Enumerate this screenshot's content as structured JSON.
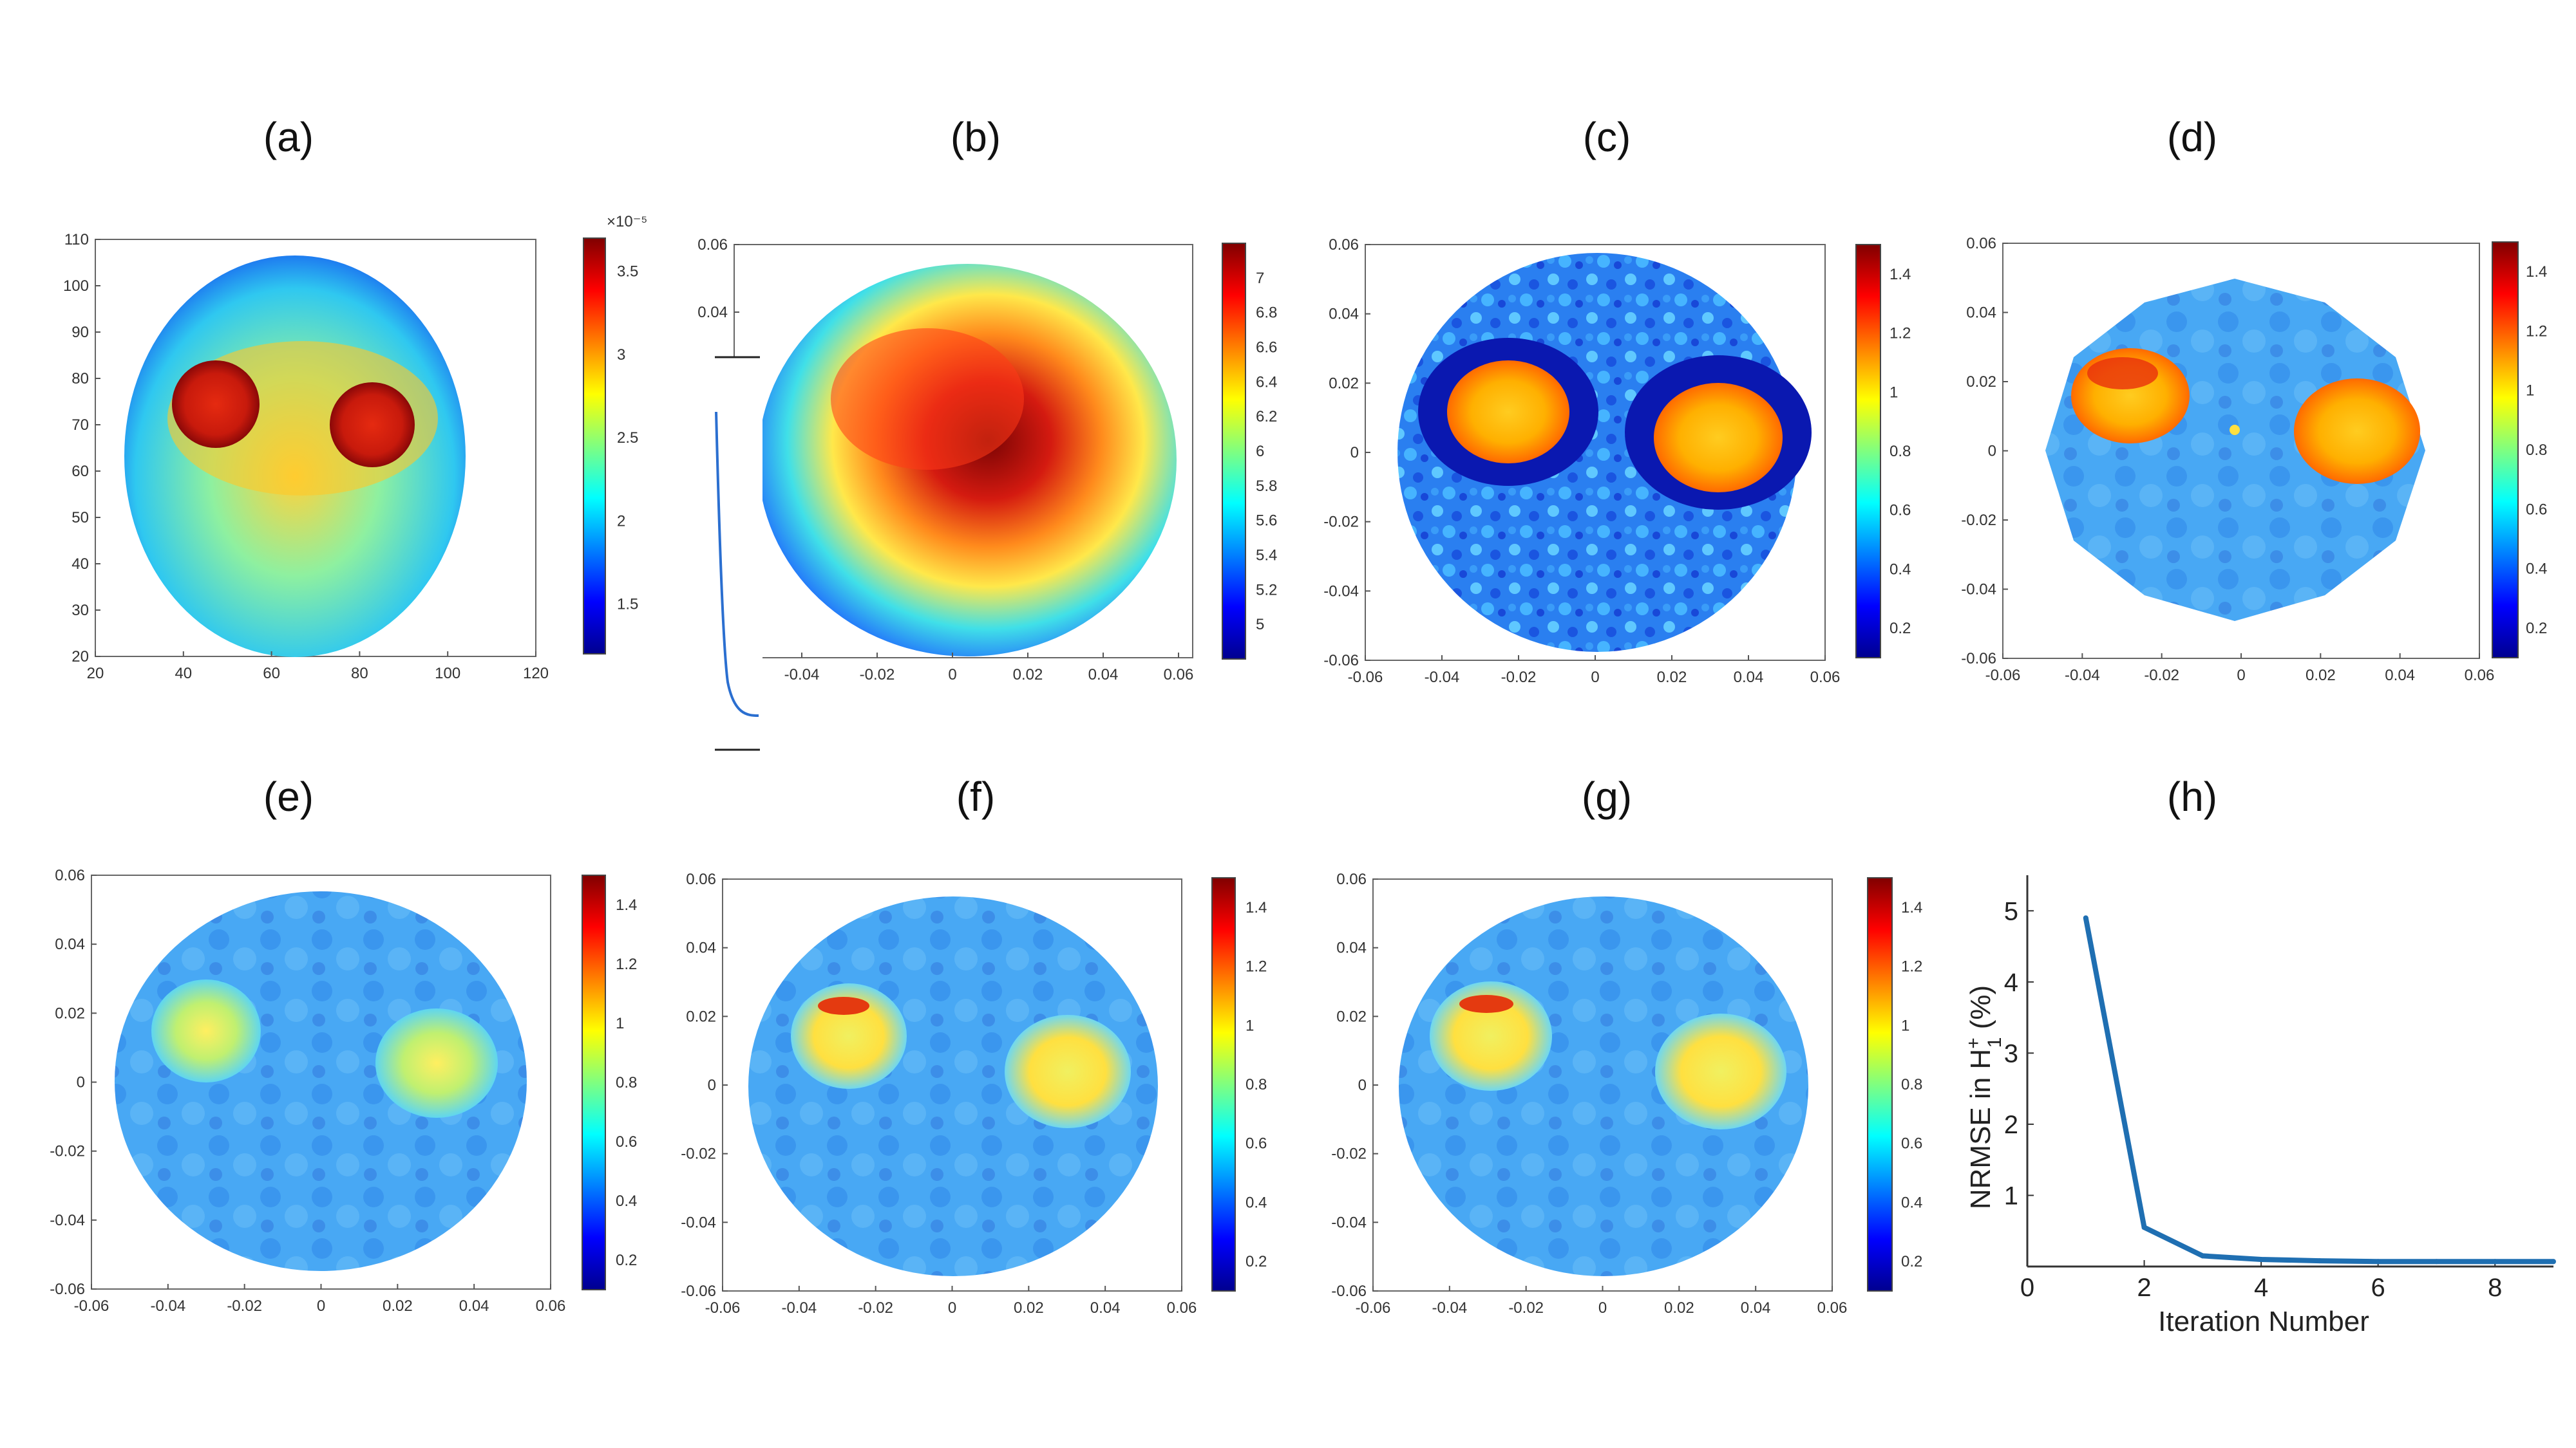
{
  "colors": {
    "axis": "#555555",
    "grid": "#e3e3e3",
    "line": "#1f6fb2"
  },
  "panels": [
    {
      "id": "a",
      "label": "(a)",
      "xticks": [
        "20",
        "40",
        "60",
        "80",
        "100",
        "120"
      ],
      "yticks": [
        "20",
        "30",
        "40",
        "50",
        "60",
        "70",
        "80",
        "90",
        "100",
        "110"
      ],
      "cbticks": [
        "1.5",
        "2",
        "2.5",
        "3",
        "3.5"
      ],
      "cbexp": "×10⁻⁵"
    },
    {
      "id": "b",
      "label": "(b)",
      "xticks": [
        "-0.04",
        "-0.02",
        "0",
        "0.02",
        "0.04",
        "0.06"
      ],
      "yticks": [
        "0.04",
        "0.06"
      ],
      "cbticks": [
        "5",
        "5.2",
        "5.4",
        "5.6",
        "5.8",
        "6",
        "6.2",
        "6.4",
        "6.6",
        "6.8",
        "7"
      ]
    },
    {
      "id": "c",
      "label": "(c)",
      "xticks": [
        "-0.06",
        "-0.04",
        "-0.02",
        "0",
        "0.02",
        "0.04",
        "0.06"
      ],
      "yticks": [
        "-0.06",
        "-0.04",
        "-0.02",
        "0",
        "0.02",
        "0.04",
        "0.06"
      ],
      "cbticks": [
        "0.2",
        "0.4",
        "0.6",
        "0.8",
        "1",
        "1.2",
        "1.4"
      ]
    },
    {
      "id": "d",
      "label": "(d)",
      "xticks": [
        "-0.06",
        "-0.04",
        "-0.02",
        "0",
        "0.02",
        "0.04",
        "0.06"
      ],
      "yticks": [
        "-0.06",
        "-0.04",
        "-0.02",
        "0",
        "0.02",
        "0.04",
        "0.06"
      ],
      "cbticks": [
        "0.2",
        "0.4",
        "0.6",
        "0.8",
        "1",
        "1.2",
        "1.4"
      ]
    },
    {
      "id": "e",
      "label": "(e)",
      "xticks": [
        "-0.06",
        "-0.04",
        "-0.02",
        "0",
        "0.02",
        "0.04",
        "0.06"
      ],
      "yticks": [
        "-0.06",
        "-0.04",
        "-0.02",
        "0",
        "0.02",
        "0.04",
        "0.06"
      ],
      "cbticks": [
        "0.2",
        "0.4",
        "0.6",
        "0.8",
        "1",
        "1.2",
        "1.4"
      ]
    },
    {
      "id": "f",
      "label": "(f)",
      "xticks": [
        "-0.06",
        "-0.04",
        "-0.02",
        "0",
        "0.02",
        "0.04",
        "0.06"
      ],
      "yticks": [
        "-0.06",
        "-0.04",
        "-0.02",
        "0",
        "0.02",
        "0.04",
        "0.06"
      ],
      "cbticks": [
        "0.2",
        "0.4",
        "0.6",
        "0.8",
        "1",
        "1.2",
        "1.4"
      ]
    },
    {
      "id": "g",
      "label": "(g)",
      "xticks": [
        "-0.06",
        "-0.04",
        "-0.02",
        "0",
        "0.02",
        "0.04",
        "0.06"
      ],
      "yticks": [
        "-0.06",
        "-0.04",
        "-0.02",
        "0",
        "0.02",
        "0.04",
        "0.06"
      ],
      "cbticks": [
        "0.2",
        "0.4",
        "0.6",
        "0.8",
        "1",
        "1.2",
        "1.4"
      ]
    },
    {
      "id": "h",
      "label": "(h)"
    }
  ],
  "chart_data": [
    {
      "panel": "a",
      "type": "heatmap",
      "xlim": [
        20,
        120
      ],
      "ylim": [
        20,
        110
      ],
      "colorbar_range": [
        1.2e-05,
        3.7e-05
      ],
      "colorbar_exponent": "×10⁻⁵"
    },
    {
      "panel": "b",
      "type": "heatmap",
      "xlim": [
        -0.06,
        0.06
      ],
      "ylim": [
        -0.06,
        0.06
      ],
      "colorbar_range": [
        4.8,
        7.2
      ]
    },
    {
      "panel": "c",
      "type": "heatmap",
      "xlim": [
        -0.06,
        0.06
      ],
      "ylim": [
        -0.06,
        0.06
      ],
      "colorbar_range": [
        0.1,
        1.5
      ]
    },
    {
      "panel": "d",
      "type": "heatmap",
      "xlim": [
        -0.06,
        0.06
      ],
      "ylim": [
        -0.06,
        0.06
      ],
      "colorbar_range": [
        0.1,
        1.5
      ]
    },
    {
      "panel": "e",
      "type": "heatmap",
      "xlim": [
        -0.06,
        0.06
      ],
      "ylim": [
        -0.06,
        0.06
      ],
      "colorbar_range": [
        0.1,
        1.5
      ]
    },
    {
      "panel": "f",
      "type": "heatmap",
      "xlim": [
        -0.06,
        0.06
      ],
      "ylim": [
        -0.06,
        0.06
      ],
      "colorbar_range": [
        0.1,
        1.5
      ]
    },
    {
      "panel": "g",
      "type": "heatmap",
      "xlim": [
        -0.06,
        0.06
      ],
      "ylim": [
        -0.06,
        0.06
      ],
      "colorbar_range": [
        0.1,
        1.5
      ]
    },
    {
      "panel": "h",
      "type": "line",
      "xlabel": "Iteration Number",
      "ylabel": "NRMSE in  H",
      "ylabel_sup": "+",
      "ylabel_sub": "1",
      "ylabel_suffix": " (%)",
      "x": [
        1,
        2,
        3,
        4,
        5,
        6,
        7,
        8,
        9
      ],
      "y": [
        4.9,
        0.55,
        0.15,
        0.1,
        0.08,
        0.07,
        0.07,
        0.07,
        0.07
      ],
      "xlim": [
        0,
        9
      ],
      "ylim": [
        0,
        5.5
      ],
      "xticks": [
        "0",
        "2",
        "4",
        "6",
        "8"
      ],
      "yticks": [
        "1",
        "2",
        "3",
        "4",
        "5"
      ]
    }
  ]
}
